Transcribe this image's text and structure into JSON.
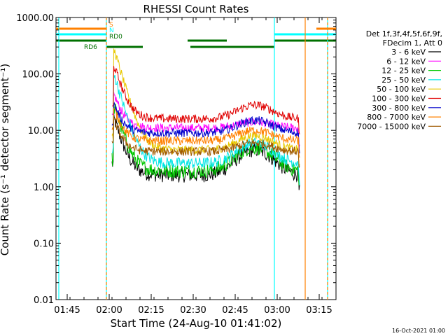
{
  "chart_data": {
    "type": "line",
    "title": "RHESSI Count Rates",
    "xlabel": "Start Time (24-Aug-10 01:41:02)",
    "ylabel": "Count Rate (s⁻¹ detector segment⁻¹)",
    "y_scale": "log",
    "ylim": [
      0.01,
      1000
    ],
    "xlim_minutes_after_0141": [
      0,
      100
    ],
    "x_ticks": [
      {
        "label": "01:45",
        "minute": 4
      },
      {
        "label": "02:00",
        "minute": 19
      },
      {
        "label": "02:15",
        "minute": 34
      },
      {
        "label": "02:30",
        "minute": 49
      },
      {
        "label": "02:45",
        "minute": 64
      },
      {
        "label": "03:00",
        "minute": 79
      },
      {
        "label": "03:15",
        "minute": 94
      }
    ],
    "y_ticks": [
      {
        "label": "1000.00",
        "value": 1000
      },
      {
        "label": "100.00",
        "value": 100
      },
      {
        "label": "10.00",
        "value": 10
      },
      {
        "label": "1.00",
        "value": 1
      },
      {
        "label": "0.10",
        "value": 0.1
      },
      {
        "label": "0.01",
        "value": 0.01
      }
    ],
    "legend_header": [
      "Det 1f,3f,4f,5f,6f,9f,",
      "FDecim 1, Att 0"
    ],
    "legend_placement": "right",
    "series": [
      {
        "name": "3 - 6 keV",
        "color": "#000000",
        "base": 1.6,
        "peak": 15,
        "bump": 4.5
      },
      {
        "name": "6 - 12 keV",
        "color": "#ff00ff",
        "base": 11,
        "peak": 40,
        "bump": 14
      },
      {
        "name": "12 - 25 keV",
        "color": "#00c800",
        "base": 1.9,
        "peak": 25,
        "bump": 5
      },
      {
        "name": "25 - 50 keV",
        "color": "#00e5e5",
        "base": 2.6,
        "peak": 90,
        "bump": 6
      },
      {
        "name": "50 - 100 keV",
        "color": "#e8c800",
        "base": 4.5,
        "peak": 250,
        "bump": 8
      },
      {
        "name": "100 - 300 keV",
        "color": "#e00000",
        "base": 16,
        "peak": 130,
        "bump": 28
      },
      {
        "name": "300 - 800 keV",
        "color": "#0000cc",
        "base": 9,
        "peak": 27,
        "bump": 15
      },
      {
        "name": "800 - 7000 keV",
        "color": "#ff8000",
        "base": 6.5,
        "peak": 22,
        "bump": 10
      },
      {
        "name": "7000 - 15000 keV",
        "color": "#a05a00",
        "base": 4.2,
        "peak": 14,
        "bump": 6
      }
    ],
    "attenuator_bars": [
      {
        "label": "S",
        "color": "#ff8000",
        "segments": [
          [
            0,
            18
          ],
          [
            93,
            100
          ]
        ]
      },
      {
        "label": "N",
        "color": "#00ffff",
        "segments": [
          [
            0,
            18
          ],
          [
            78,
            100
          ]
        ]
      },
      {
        "label": "RD0",
        "color": "#007000",
        "segments": [
          [
            0,
            18
          ],
          [
            47,
            61
          ],
          [
            78,
            100
          ]
        ]
      },
      {
        "label": "RD6",
        "color": "#007000",
        "segments": [
          [
            18,
            31
          ],
          [
            48,
            78
          ]
        ]
      }
    ],
    "vertical_markers": [
      {
        "minute": 1,
        "color": "#00ffff",
        "style": "solid"
      },
      {
        "minute": 18,
        "color": "#00ffff",
        "style": "solid"
      },
      {
        "minute": 18,
        "color": "#ff8000",
        "style": "dashed"
      },
      {
        "minute": 78,
        "color": "#00ffff",
        "style": "solid"
      },
      {
        "minute": 89,
        "color": "#ff8000",
        "style": "solid"
      },
      {
        "minute": 97,
        "color": "#00ffff",
        "style": "solid"
      },
      {
        "minute": 97,
        "color": "#ff8000",
        "style": "dashed"
      }
    ],
    "data_segment": {
      "start": 20,
      "end": 87
    }
  },
  "footer": {
    "timestamp": "16-Oct-2021 01:00"
  }
}
